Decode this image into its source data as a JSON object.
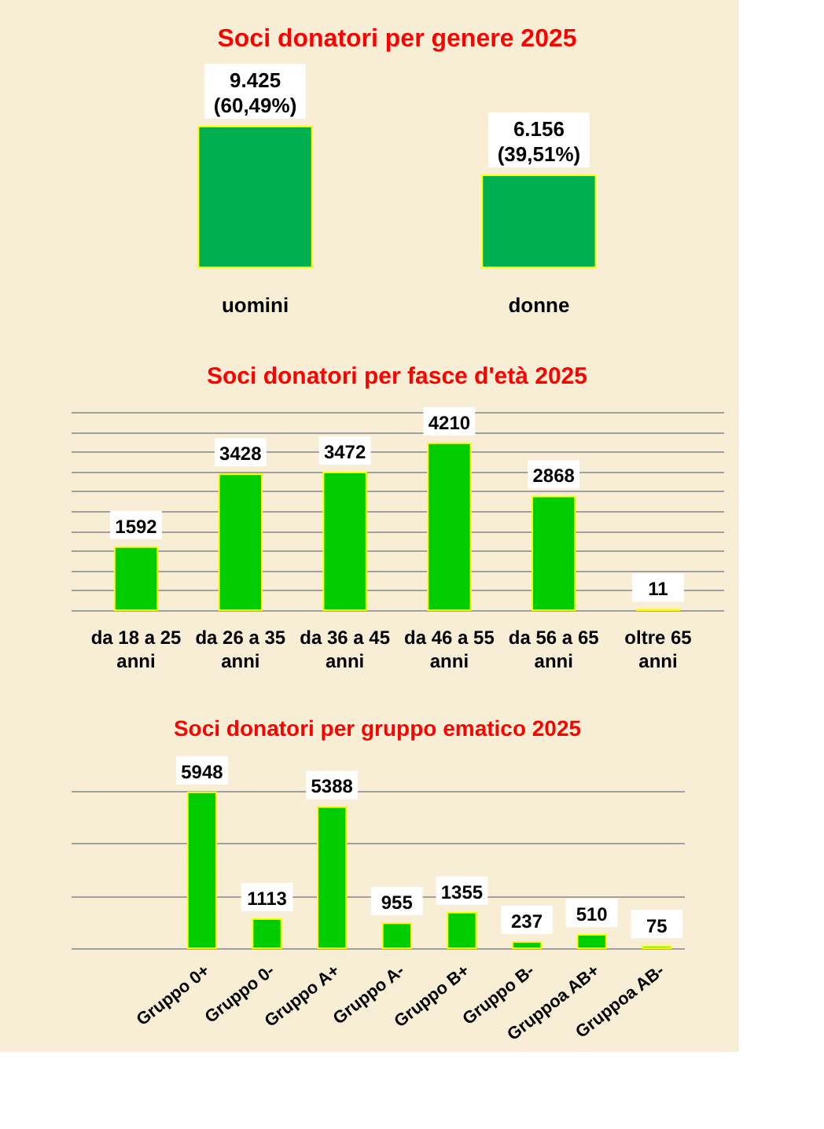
{
  "chart_data": [
    {
      "type": "bar",
      "title": "Soci donatori per genere 2025",
      "categories": [
        "uomini",
        "donne"
      ],
      "values": [
        9425,
        6156
      ],
      "color": "#00b050",
      "value_labels": [
        "9.425\n(60,49%)",
        "6.156\n(39,51%)"
      ],
      "tick_labels": "x"
    },
    {
      "type": "bar",
      "title": "Soci donatori per fasce d'età 2025",
      "categories": [
        "da 18 a 25 anni",
        "da 26 a 35 anni",
        "da 36 a 45 anni",
        "da 46 a 55 anni",
        "da 56 a 65 anni",
        "oltre 65 anni"
      ],
      "values": [
        1592,
        3428,
        3472,
        4210,
        2868,
        11
      ],
      "color": "#00cc00",
      "ylim": [
        0,
        5000
      ],
      "yticks": [
        {
          "value": 0,
          "label": null
        },
        {
          "value": 500,
          "label": null
        },
        {
          "value": 1000,
          "label": null
        },
        {
          "value": 1500,
          "label": null
        },
        {
          "value": 2000,
          "label": null
        },
        {
          "value": 2500,
          "label": null
        },
        {
          "value": 3000,
          "label": null
        },
        {
          "value": 3500,
          "label": null
        },
        {
          "value": 4000,
          "label": null
        },
        {
          "value": 4500,
          "label": null
        },
        {
          "value": 5000,
          "label": null
        }
      ],
      "grid": "y",
      "tick_labels": "x",
      "data_labels": true
    },
    {
      "type": "bar",
      "title": "Soci donatori per gruppo ematico 2025",
      "categories": [
        "Gruppo 0+",
        "Gruppo 0-",
        "Gruppo A+",
        "Gruppo A-",
        "Gruppo B+",
        "Gruppo B-",
        "Gruppoa AB+",
        "Gruppoa AB-"
      ],
      "values": [
        5948,
        1113,
        5388,
        955,
        1355,
        237,
        510,
        75
      ],
      "color": "#00cc00",
      "ylim": [
        0,
        6000
      ],
      "yticks": [
        {
          "value": 0,
          "label": null
        },
        {
          "value": 2000,
          "label": null
        },
        {
          "value": 4000,
          "label": null
        },
        {
          "value": 6000,
          "label": null
        }
      ],
      "grid": "y",
      "tick_labels": "x",
      "data_labels": true
    }
  ]
}
